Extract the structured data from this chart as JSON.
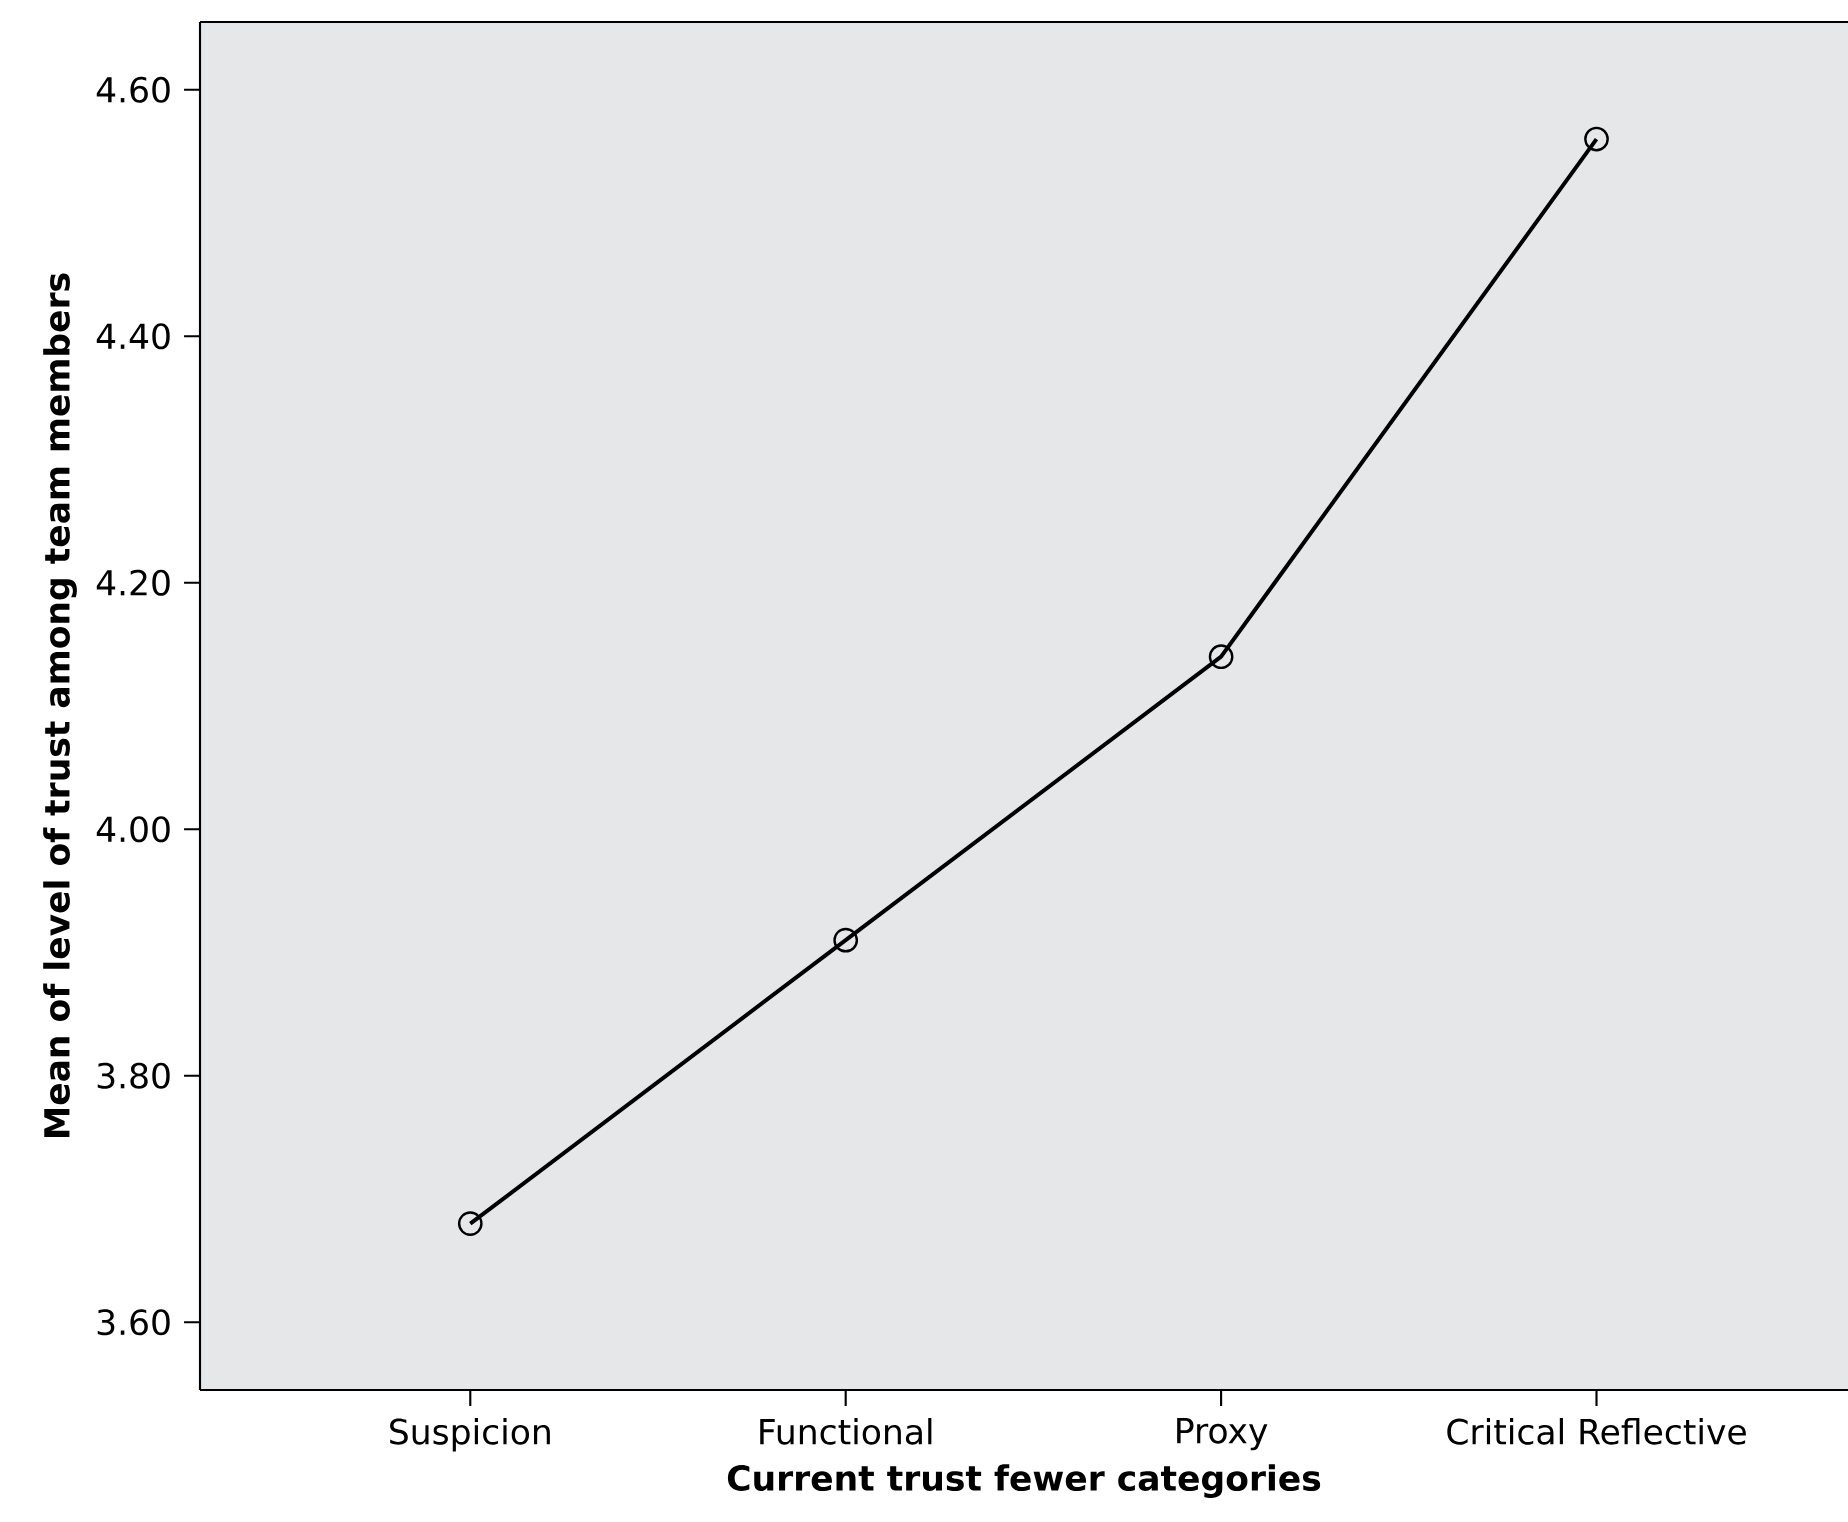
{
  "chart_data": {
    "type": "line",
    "xlabel": "Current trust fewer categories",
    "ylabel": "Mean of level of trust among team members",
    "categories": [
      "Suspicion",
      "Functional",
      "Proxy",
      "Critical Reflective"
    ],
    "series": [
      {
        "color": "#000000",
        "values": [
          3.68,
          3.91,
          4.14,
          4.56
        ]
      }
    ],
    "ylim": [
      3.545,
      4.655
    ],
    "yticks": [
      {
        "value": 3.6,
        "label": "3.60"
      },
      {
        "value": 3.8,
        "label": "3.80"
      },
      {
        "value": 4.0,
        "label": "4.00"
      },
      {
        "value": 4.2,
        "label": "4.20"
      },
      {
        "value": 4.4,
        "label": "4.40"
      },
      {
        "value": 4.6,
        "label": "4.60"
      }
    ],
    "grid": false,
    "marker": "circle",
    "line_style": "solid"
  }
}
